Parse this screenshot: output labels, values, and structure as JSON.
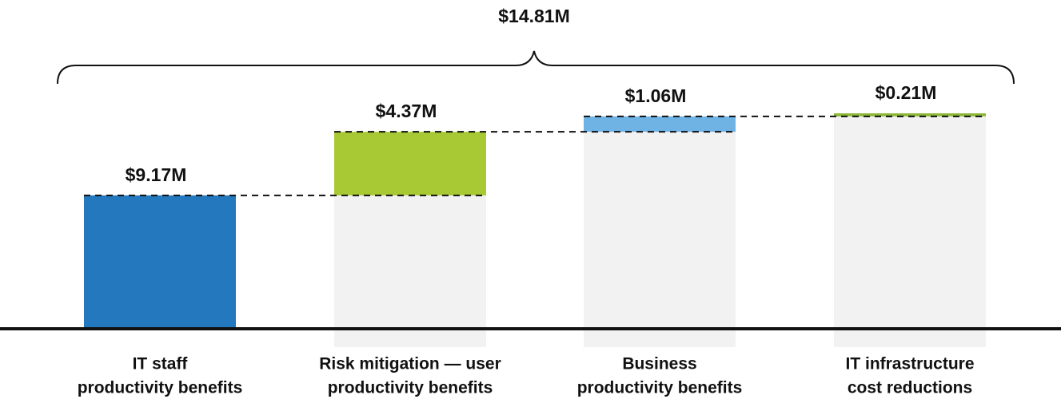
{
  "chart_data": {
    "type": "waterfall",
    "categories": [
      [
        "IT staff",
        "productivity benefits"
      ],
      [
        "Risk mitigation — user",
        "productivity benefits"
      ],
      [
        "Business",
        "productivity benefits"
      ],
      [
        "IT infrastructure",
        "cost reductions"
      ]
    ],
    "values": [
      9.17,
      4.37,
      1.06,
      0.21
    ],
    "value_labels": [
      "$9.17M",
      "$4.37M",
      "$1.06M",
      "$0.21M"
    ],
    "colors": [
      "#2479be",
      "#a9c934",
      "#6fb2e4",
      "#8db83a"
    ],
    "total": 14.81,
    "total_label": "$14.81M"
  }
}
